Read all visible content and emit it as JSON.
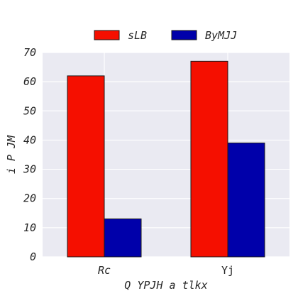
{
  "chart_data": {
    "type": "bar",
    "categories": [
      "Rc",
      "Yj"
    ],
    "series": [
      {
        "name": "sLB",
        "values": [
          62,
          67
        ],
        "color": "#f50f00"
      },
      {
        "name": "ByMJJ",
        "values": [
          13,
          39
        ],
        "color": "#0000aa"
      }
    ],
    "xlabel": "Q YPJH a tlkx",
    "ylabel": "i P JM",
    "ylim": [
      0,
      70
    ],
    "yticks": [
      0,
      10,
      20,
      30,
      40,
      50,
      60,
      70
    ],
    "grid": true,
    "legend_position": "top-center",
    "background": "#eaeaf2"
  }
}
